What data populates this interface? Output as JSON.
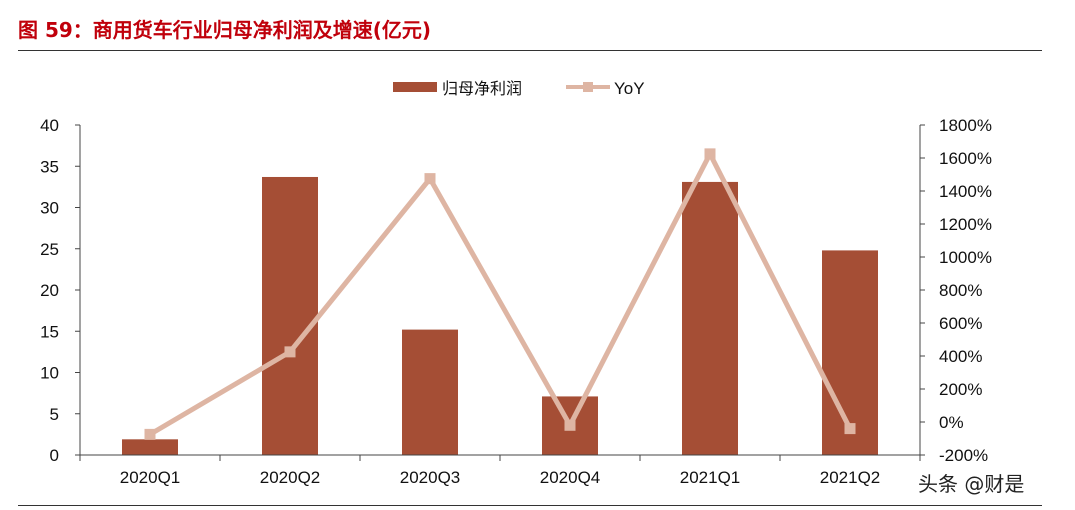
{
  "figure": {
    "title": "图  59：商用货车行业归母净利润及增速(亿元)",
    "watermark": "头条 @财是"
  },
  "colors": {
    "title": "#c0000b",
    "bar": "#a54e35",
    "line": "#deb5a3",
    "axis": "#444444",
    "text": "#111111"
  },
  "chart_data": {
    "type": "bar",
    "categories": [
      "2020Q1",
      "2020Q2",
      "2020Q3",
      "2020Q4",
      "2021Q1",
      "2021Q2"
    ],
    "series": [
      {
        "name": "归母净利润",
        "type": "bar",
        "axis": "left",
        "values": [
          1.9,
          33.7,
          15.2,
          7.1,
          33.1,
          24.8
        ]
      },
      {
        "name": "YoY",
        "type": "line",
        "axis": "right",
        "values": [
          -75,
          425,
          1475,
          -20,
          1625,
          -40
        ]
      }
    ],
    "y_left": {
      "ylim": [
        0,
        40
      ],
      "ticks": [
        0,
        5,
        10,
        15,
        20,
        25,
        30,
        35,
        40
      ],
      "tick_labels": [
        "0",
        "5",
        "10",
        "15",
        "20",
        "25",
        "30",
        "35",
        "40"
      ]
    },
    "y_right": {
      "ylim": [
        -200,
        1800
      ],
      "ticks": [
        -200,
        0,
        200,
        400,
        600,
        800,
        1000,
        1200,
        1400,
        1600,
        1800
      ],
      "tick_labels": [
        "-200%",
        "0%",
        "200%",
        "400%",
        "600%",
        "800%",
        "1000%",
        "1200%",
        "1400%",
        "1600%",
        "1800%"
      ]
    },
    "legend": {
      "placement": "top-center",
      "entries": [
        "归母净利润",
        "YoY"
      ]
    },
    "grid": false,
    "xlabel": "",
    "ylabel": ""
  }
}
